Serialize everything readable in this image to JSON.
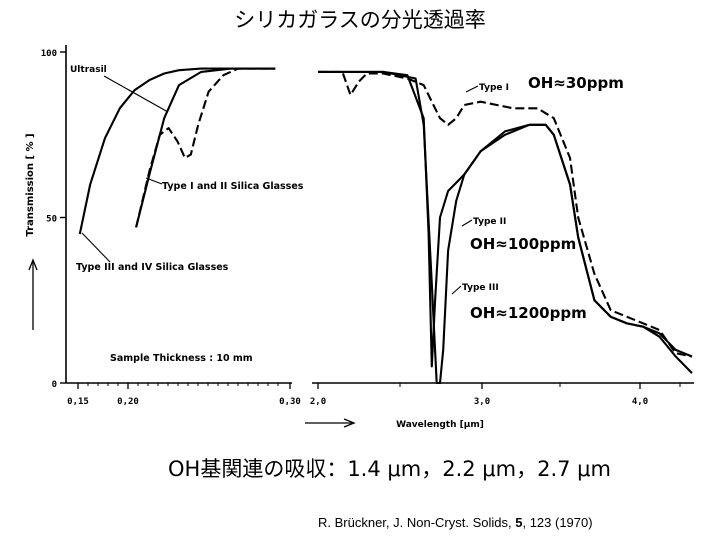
{
  "slide": {
    "title": "シリカガラスの分光透過率",
    "caption": "OH基関連の吸収：1.4 μm，2.2 μm，2.7 μm",
    "reference": {
      "prefix": "R. Brückner, J. Non-Cryst. Solids, ",
      "volume": "5",
      "suffix": ", 123 (1970)"
    }
  },
  "chart_data": {
    "type": "line",
    "ylabel": "Transmission  [ % ]",
    "xlabel": "Wavelength  [μm]",
    "ylim": [
      0,
      100
    ],
    "y_ticks": [
      "0",
      "50",
      "100"
    ],
    "line_color": "#000000",
    "panels": [
      {
        "name": "uv",
        "xlim": [
          0.15,
          0.3
        ],
        "x_ticks": [
          "0,15",
          "0,20",
          "0,30"
        ],
        "annotations": [
          "Ultrasil",
          "Type I and II Silica Glasses",
          "Type III and IV Silica Glasses",
          "Sample Thickness : 10 mm"
        ],
        "series": [
          {
            "name": "Ultrasil",
            "style": "solid",
            "x": [
              0.158,
              0.165,
              0.175,
              0.185,
              0.195,
              0.205,
              0.215,
              0.225,
              0.24,
              0.26,
              0.29
            ],
            "y": [
              45,
              60,
              74,
              83,
              88.5,
              91.5,
              93.5,
              94.5,
              95,
              95,
              95
            ]
          },
          {
            "name": "Type I and II Silica Glasses",
            "style": "solid",
            "x": [
              0.196,
              0.205,
              0.215,
              0.225,
              0.24,
              0.26,
              0.29
            ],
            "y": [
              47,
              63,
              80,
              90,
              94,
              95,
              95
            ]
          },
          {
            "name": "Type I and II Silica Glasses (dashed)",
            "style": "dashed",
            "x": [
              0.196,
              0.205,
              0.212,
              0.218,
              0.224,
              0.229,
              0.233,
              0.238,
              0.245,
              0.255,
              0.265,
              0.29
            ],
            "y": [
              47,
              64,
              75,
              77,
              73,
              68,
              69,
              78,
              88,
              93,
              95,
              95
            ]
          }
        ]
      },
      {
        "name": "ir",
        "xlim": [
          2.0,
          4.3
        ],
        "x_ticks": [
          "2,0",
          "3,0",
          "4,0"
        ],
        "annotations": [
          "Type I",
          "OH≈30ppm",
          "Type II",
          "OH≈100ppm",
          "Type III",
          "OH≈1200ppm"
        ],
        "series": [
          {
            "name": "Type I",
            "style": "dashed",
            "x": [
              2.0,
              2.15,
              2.2,
              2.25,
              2.3,
              2.4,
              2.55,
              2.65,
              2.7,
              2.75,
              2.8,
              2.85,
              2.9,
              3.0,
              3.2,
              3.35,
              3.45,
              3.55,
              3.6,
              3.7,
              3.8,
              3.9,
              4.0,
              4.1,
              4.2,
              4.3
            ],
            "y": [
              94,
              94,
              87,
              91,
              93.5,
              93.5,
              92,
              90,
              85,
              80,
              78,
              80,
              84,
              85,
              83,
              83,
              80,
              68,
              50,
              33,
              22,
              20,
              18,
              16,
              9,
              8
            ]
          },
          {
            "name": "Type II",
            "style": "solid",
            "x": [
              2.0,
              2.4,
              2.55,
              2.65,
              2.68,
              2.7,
              2.72,
              2.75,
              2.8,
              2.9,
              3.0,
              3.15,
              3.3,
              3.4,
              3.45,
              3.55,
              3.6,
              3.7,
              3.8,
              3.9,
              4.0,
              4.1,
              4.2,
              4.3
            ],
            "y": [
              94,
              94,
              93,
              80,
              45,
              5,
              25,
              50,
              58,
              63,
              70,
              75,
              78,
              78,
              75,
              60,
              44,
              25,
              20,
              18,
              17,
              15,
              10,
              8
            ]
          },
          {
            "name": "Type III",
            "style": "solid",
            "x": [
              2.0,
              2.4,
              2.6,
              2.65,
              2.7,
              2.73,
              2.75,
              2.77,
              2.8,
              2.85,
              2.9,
              3.0,
              3.15,
              3.3,
              3.4,
              3.45,
              3.55,
              3.6,
              3.7,
              3.8,
              3.9,
              4.0,
              4.1,
              4.2,
              4.3
            ],
            "y": [
              94,
              94,
              92,
              78,
              30,
              0,
              0,
              10,
              40,
              55,
              63,
              70,
              76,
              78,
              78,
              75,
              60,
              44,
              25,
              20,
              18,
              17,
              14,
              8,
              3
            ]
          }
        ]
      }
    ]
  }
}
